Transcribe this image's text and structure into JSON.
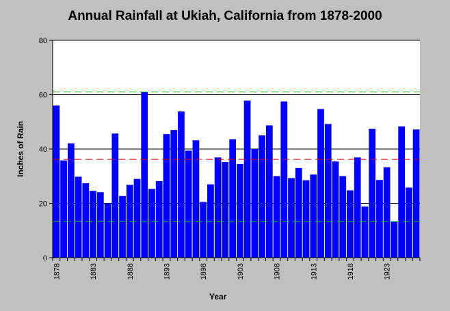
{
  "chart_data": {
    "type": "bar",
    "title": "Annual Rainfall at Ukiah, California from 1878-2000",
    "xlabel": "Year",
    "ylabel": "Inches of Rain",
    "ylim": [
      0,
      80
    ],
    "yticks": [
      0,
      20,
      40,
      60,
      80
    ],
    "x_tick_labels": [
      "1878",
      "1883",
      "1888",
      "1893",
      "1898",
      "1903",
      "1908",
      "1913",
      "1918",
      "1923"
    ],
    "categories": [
      "1878",
      "1879",
      "1880",
      "1881",
      "1882",
      "1883",
      "1884",
      "1885",
      "1886",
      "1887",
      "1888",
      "1889",
      "1890",
      "1891",
      "1892",
      "1893",
      "1894",
      "1895",
      "1896",
      "1897",
      "1898",
      "1899",
      "1900",
      "1901",
      "1902",
      "1903",
      "1904",
      "1905",
      "1906",
      "1907",
      "1908",
      "1909",
      "1910",
      "1911",
      "1912",
      "1913",
      "1914",
      "1915",
      "1916",
      "1917",
      "1918",
      "1919",
      "1920",
      "1921",
      "1922",
      "1923",
      "1924",
      "1925",
      "1926",
      "1927"
    ],
    "values": [
      56.0,
      35.8,
      42.1,
      29.8,
      27.4,
      24.6,
      24.1,
      20.0,
      45.7,
      22.7,
      26.8,
      29.0,
      61.0,
      25.3,
      28.2,
      45.5,
      47.0,
      53.8,
      39.4,
      43.2,
      20.5,
      27.0,
      36.9,
      35.2,
      43.6,
      34.5,
      57.8,
      40.0,
      45.0,
      48.7,
      30.0,
      57.5,
      29.3,
      33.0,
      28.5,
      30.6,
      54.7,
      49.2,
      35.4,
      30.0,
      24.8,
      36.9,
      18.8,
      47.4,
      28.6,
      33.3,
      13.3,
      48.3,
      25.8,
      47.2
    ],
    "bar_color": "#0000ff",
    "reference_lines": [
      {
        "value": 61.0,
        "color": "#00cc00",
        "style": "dashed"
      },
      {
        "value": 36.2,
        "color": "#cc0000",
        "style": "dashed"
      },
      {
        "value": 13.3,
        "color": "#00cc00",
        "style": "dashed"
      }
    ],
    "grid": "horizontal",
    "legend": "none"
  }
}
